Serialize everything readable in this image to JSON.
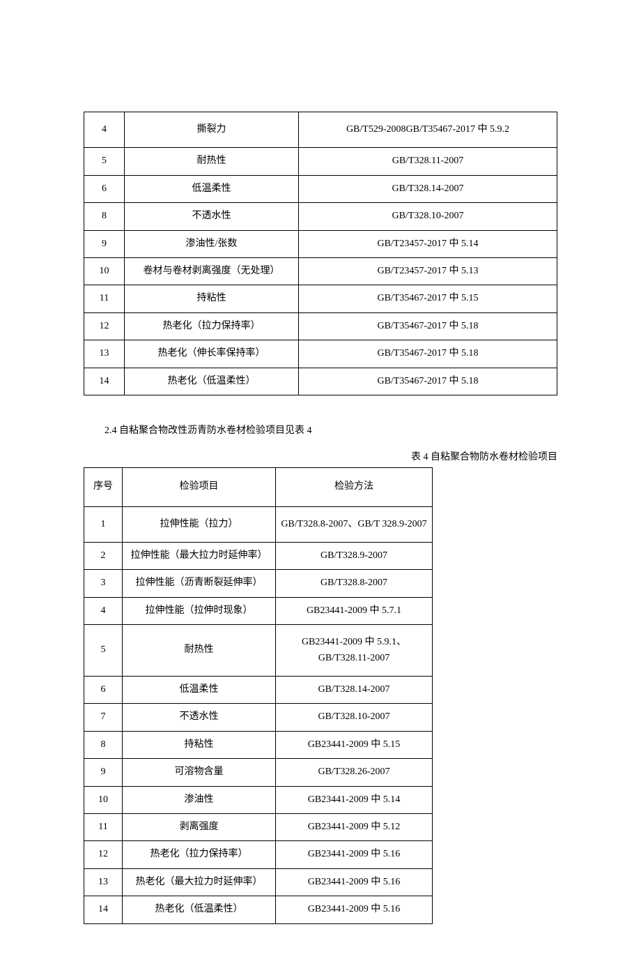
{
  "table1": {
    "columns": {
      "seq_width": 58,
      "item_width": 250
    },
    "rows": [
      {
        "seq": "4",
        "item": "撕裂力",
        "method": "GB/T529-2008GB/T35467-2017 中 5.9.2",
        "tall": true
      },
      {
        "seq": "5",
        "item": "耐热性",
        "method": "GB/T328.11-2007"
      },
      {
        "seq": "6",
        "item": "低温柔性",
        "method": "GB/T328.14-2007"
      },
      {
        "seq": "8",
        "item": "不透水性",
        "method": "GB/T328.10-2007"
      },
      {
        "seq": "9",
        "item": "渗油性/张数",
        "method": "GB/T23457-2017 中 5.14"
      },
      {
        "seq": "10",
        "item": "卷材与卷材剥离强度（无处理）",
        "method": "GB/T23457-2017 中 5.13"
      },
      {
        "seq": "11",
        "item": "持粘性",
        "method": "GB/T35467-2017 中 5.15"
      },
      {
        "seq": "12",
        "item": "热老化（拉力保持率）",
        "method": "GB/T35467-2017 中 5.18"
      },
      {
        "seq": "13",
        "item": "热老化（伸长率保持率）",
        "method": "GB/T35467-2017 中 5.18"
      },
      {
        "seq": "14",
        "item": "热老化（低温柔性）",
        "method": "GB/T35467-2017 中 5.18"
      }
    ]
  },
  "section_heading": "2.4 自粘聚合物改性沥青防水卷材检验项目见表 4",
  "table2": {
    "caption": "表 4 自粘聚合物防水卷材检验项目",
    "header": {
      "seq": "序号",
      "item": "检验项目",
      "method": "检验方法"
    },
    "rows": [
      {
        "seq": "1",
        "item": "拉伸性能（拉力）",
        "method": "GB/T328.8-2007、GB/T 328.9-2007",
        "tall": true
      },
      {
        "seq": "2",
        "item": "拉伸性能（最大拉力时延伸率）",
        "method": "GB/T328.9-2007"
      },
      {
        "seq": "3",
        "item": "拉伸性能（沥青断裂延伸率）",
        "method": "GB/T328.8-2007"
      },
      {
        "seq": "4",
        "item": "拉伸性能（拉伸时现象）",
        "method": "GB23441-2009 中 5.7.1"
      },
      {
        "seq": "5",
        "item": "耐热性",
        "method": "GB23441-2009 中 5.9.1、 GB/T328.11-2007",
        "tall": true
      },
      {
        "seq": "6",
        "item": "低温柔性",
        "method": "GB/T328.14-2007"
      },
      {
        "seq": "7",
        "item": "不透水性",
        "method": "GB/T328.10-2007"
      },
      {
        "seq": "8",
        "item": "持粘性",
        "method": "GB23441-2009 中 5.15"
      },
      {
        "seq": "9",
        "item": "可溶物含量",
        "method": "GB/T328.26-2007"
      },
      {
        "seq": "10",
        "item": "渗油性",
        "method": "GB23441-2009 中 5.14"
      },
      {
        "seq": "11",
        "item": "剥离强度",
        "method": "GB23441-2009 中 5.12"
      },
      {
        "seq": "12",
        "item": "热老化（拉力保持率）",
        "method": "GB23441-2009 中 5.16"
      },
      {
        "seq": "13",
        "item": "热老化（最大拉力时延伸率）",
        "method": "GB23441-2009 中 5.16"
      },
      {
        "seq": "14",
        "item": "热老化（低温柔性）",
        "method": "GB23441-2009 中 5.16"
      }
    ]
  }
}
